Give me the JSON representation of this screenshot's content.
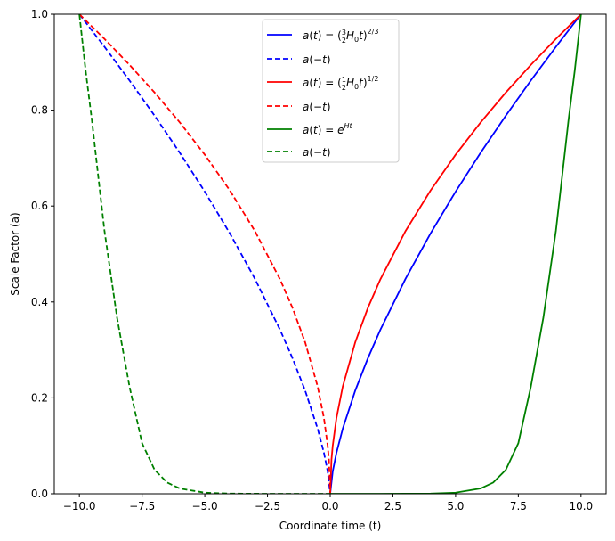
{
  "chart_data": {
    "type": "line",
    "xlabel": "Coordinate time (t)",
    "ylabel": "Scale Factor (a)",
    "xlim": [
      -11,
      11
    ],
    "ylim": [
      0,
      1
    ],
    "x_ticks": [
      -10.0,
      -7.5,
      -5.0,
      -2.5,
      0.0,
      2.5,
      5.0,
      7.5,
      10.0
    ],
    "x_tick_labels": [
      "−10.0",
      "−7.5",
      "−5.0",
      "−2.5",
      "0.0",
      "2.5",
      "5.0",
      "7.5",
      "10.0"
    ],
    "y_ticks": [
      0.0,
      0.2,
      0.4,
      0.6,
      0.8,
      1.0
    ],
    "y_tick_labels": [
      "0.0",
      "0.2",
      "0.4",
      "0.6",
      "0.8",
      "1.0"
    ],
    "grid": false,
    "legend_position": "top-center",
    "series": [
      {
        "name": "a(t) = (3/2 H₀t)^{2/3}",
        "color": "#0000ff",
        "style": "solid",
        "x": [
          0,
          0.1,
          0.25,
          0.5,
          1,
          1.5,
          2,
          3,
          4,
          5,
          6,
          7,
          8,
          9,
          10
        ],
        "y": [
          0,
          0.0464,
          0.0855,
          0.1357,
          0.2154,
          0.2823,
          0.342,
          0.4481,
          0.5429,
          0.63,
          0.7114,
          0.7884,
          0.8618,
          0.9322,
          1.0
        ]
      },
      {
        "name": "a(−t)",
        "color": "#0000ff",
        "style": "dashed",
        "x": [
          -10,
          -9,
          -8,
          -7,
          -6,
          -5,
          -4,
          -3,
          -2,
          -1.5,
          -1,
          -0.5,
          -0.25,
          -0.1,
          0
        ],
        "y": [
          1.0,
          0.9322,
          0.8618,
          0.7884,
          0.7114,
          0.63,
          0.5429,
          0.4481,
          0.342,
          0.2823,
          0.2154,
          0.1357,
          0.0855,
          0.0464,
          0
        ]
      },
      {
        "name": "a(t) = (1/2 H₀t)^{1/2}",
        "color": "#ff0000",
        "style": "solid",
        "x": [
          0,
          0.05,
          0.1,
          0.25,
          0.5,
          1,
          1.5,
          2,
          3,
          4,
          5,
          6,
          7,
          8,
          9,
          10
        ],
        "y": [
          0,
          0.0707,
          0.1,
          0.1581,
          0.2236,
          0.3162,
          0.3873,
          0.4472,
          0.5477,
          0.6325,
          0.7071,
          0.7746,
          0.8367,
          0.8944,
          0.9487,
          1.0
        ]
      },
      {
        "name": "a(−t)",
        "color": "#ff0000",
        "style": "dashed",
        "x": [
          -10,
          -9,
          -8,
          -7,
          -6,
          -5,
          -4,
          -3,
          -2,
          -1.5,
          -1,
          -0.5,
          -0.25,
          -0.1,
          -0.05,
          0
        ],
        "y": [
          1.0,
          0.9487,
          0.8944,
          0.8367,
          0.7746,
          0.7071,
          0.6325,
          0.5477,
          0.4472,
          0.3873,
          0.3162,
          0.2236,
          0.1581,
          0.1,
          0.0707,
          0
        ]
      },
      {
        "name": "a(t) = e^{Ht}",
        "color": "#008000",
        "style": "solid",
        "x": [
          0,
          1,
          2,
          3,
          4,
          5,
          6,
          6.5,
          7,
          7.5,
          8,
          8.5,
          9,
          9.25,
          9.5,
          9.75,
          10
        ],
        "y": [
          0,
          0,
          0,
          0.0001,
          0.0004,
          0.0023,
          0.0111,
          0.0234,
          0.0498,
          0.1054,
          0.2231,
          0.3679,
          0.5488,
          0.6631,
          0.7788,
          0.8825,
          1.0
        ]
      },
      {
        "name": "a(−t)",
        "color": "#008000",
        "style": "dashed",
        "x": [
          -10,
          -9.75,
          -9.5,
          -9.25,
          -9,
          -8.5,
          -8,
          -7.5,
          -7,
          -6.5,
          -6,
          -5,
          -4,
          -3,
          -2,
          -1,
          0
        ],
        "y": [
          1.0,
          0.8825,
          0.7788,
          0.6631,
          0.5488,
          0.3679,
          0.2231,
          0.1054,
          0.0498,
          0.0234,
          0.0111,
          0.0023,
          0.0004,
          0.0001,
          0,
          0,
          0
        ]
      }
    ]
  }
}
